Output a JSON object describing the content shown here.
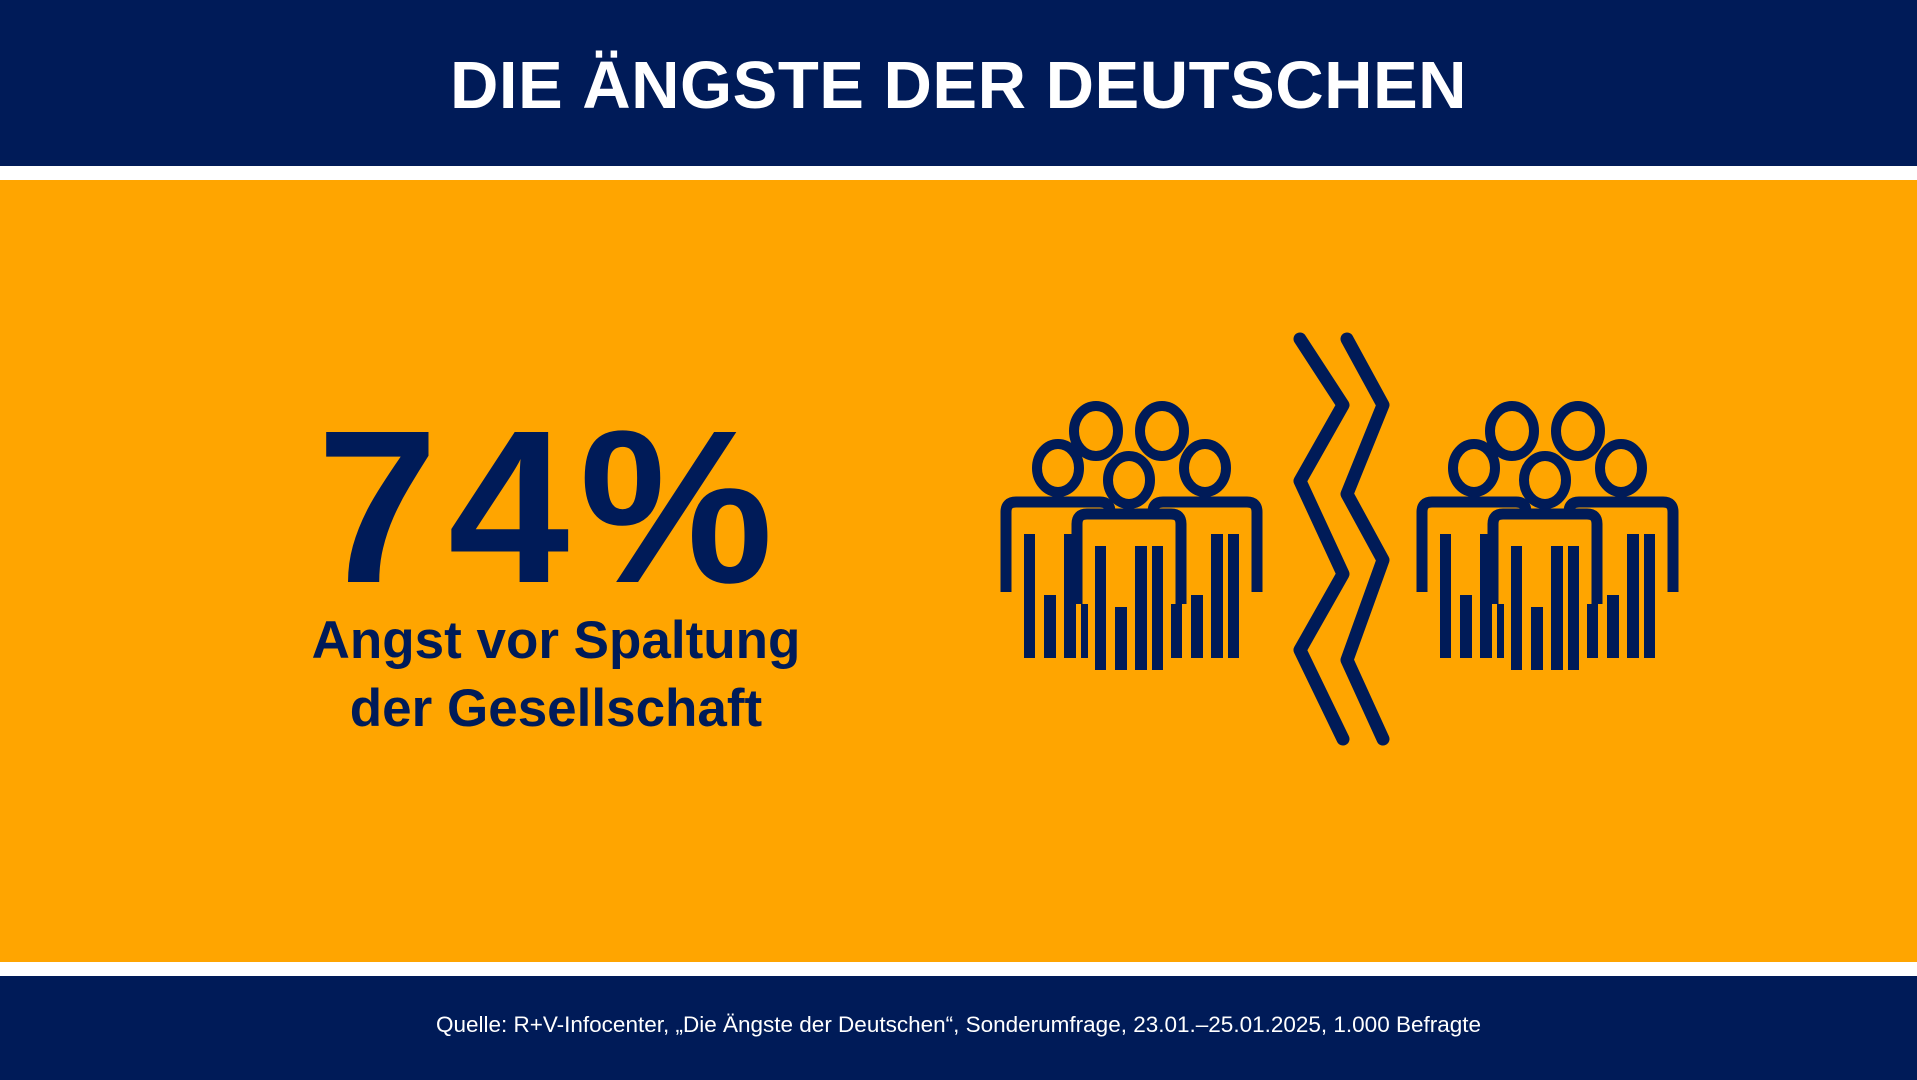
{
  "header": {
    "title": "DIE ÄNGSTE DER DEUTSCHEN"
  },
  "main": {
    "percentage": "74%",
    "label_line1": "Angst vor Spaltung",
    "label_line2": "der Gesellschaft",
    "icon": "divided-society-icon"
  },
  "footer": {
    "source": "Quelle: R+V-Infocenter, „Die Ängste der Deutschen“, Sonderumfrage, 23.01.–25.01.2025, 1.000 Befragte"
  },
  "colors": {
    "navy": "#001b58",
    "orange": "#ffa500",
    "white": "#ffffff"
  }
}
